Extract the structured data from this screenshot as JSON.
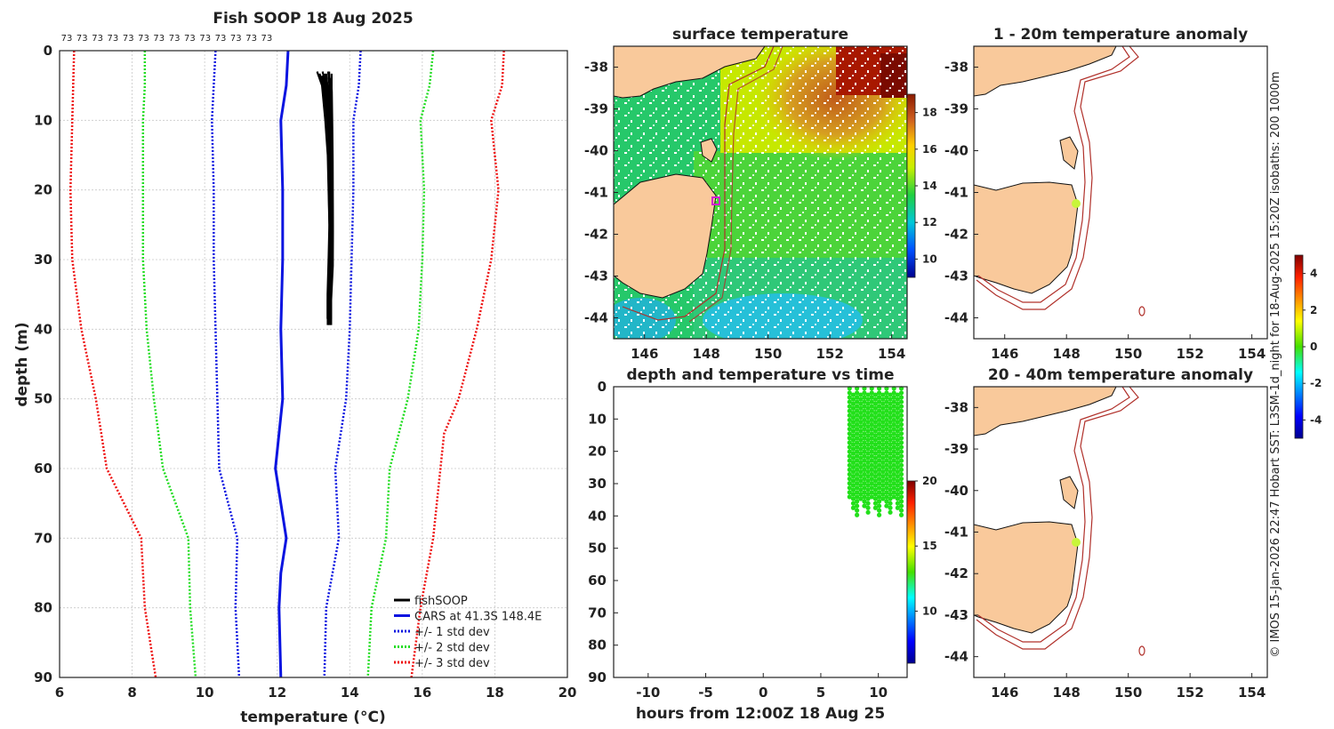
{
  "credit": "© IMOS 15-Jan-2026 22:47 Hobart SST: L3SM-1d_night for 18-Aug-2025 15:20Z isobaths: 200  1000m",
  "colors": {
    "fishsoop": "#000000",
    "cars": "#0a14e0",
    "std1": "#0a14e0",
    "std2": "#22dd22",
    "std3": "#ee1111",
    "land": "#f9c99b",
    "isobath": "#b0302a",
    "time_points": "#22e01a",
    "anomaly_marker": "#c8f53a",
    "mooring_marker": "#d020d0"
  },
  "chart_data": [
    {
      "type": "line",
      "name": "profile",
      "title": "Fish SOOP 18 Aug 2025",
      "xlabel": "temperature (°C)",
      "ylabel": "depth (m)",
      "xlim": [
        6,
        20
      ],
      "ylim": [
        90,
        0
      ],
      "xticks": [
        6,
        8,
        10,
        12,
        14,
        16,
        18,
        20
      ],
      "yticks": [
        0,
        10,
        20,
        30,
        40,
        50,
        60,
        70,
        80,
        90
      ],
      "top_annotation": [
        "73",
        "73",
        "73",
        "73",
        "73",
        "73",
        "73",
        "73",
        "73",
        "73",
        "73",
        "73",
        "73",
        "73"
      ],
      "legend": [
        "fishSOOP",
        "CARS at 41.3S 148.4E",
        "+/- 1 std dev",
        "+/- 2 std dev",
        "+/- 3 std dev"
      ],
      "series": [
        {
          "name": "CARS mean",
          "depth": [
            0,
            5,
            10,
            20,
            30,
            40,
            50,
            60,
            70,
            75,
            80,
            90
          ],
          "temp": [
            12.3,
            12.25,
            12.1,
            12.15,
            12.15,
            12.1,
            12.15,
            11.95,
            12.25,
            12.1,
            12.05,
            12.1
          ]
        },
        {
          "name": "-1 std",
          "depth": [
            0,
            10,
            20,
            30,
            40,
            50,
            60,
            70,
            80,
            90
          ],
          "temp": [
            10.3,
            10.2,
            10.25,
            10.25,
            10.3,
            10.35,
            10.4,
            10.9,
            10.85,
            10.95
          ]
        },
        {
          "name": "+1 std",
          "depth": [
            0,
            5,
            10,
            20,
            30,
            40,
            50,
            60,
            70,
            80,
            90
          ],
          "temp": [
            14.3,
            14.25,
            14.1,
            14.1,
            14.05,
            14.0,
            13.9,
            13.6,
            13.7,
            13.35,
            13.3
          ]
        },
        {
          "name": "-2 std",
          "depth": [
            0,
            5,
            10,
            20,
            30,
            40,
            50,
            60,
            70,
            80,
            90
          ],
          "temp": [
            8.35,
            8.35,
            8.3,
            8.3,
            8.3,
            8.4,
            8.6,
            8.85,
            9.55,
            9.6,
            9.75
          ]
        },
        {
          "name": "+2 std",
          "depth": [
            0,
            5,
            10,
            20,
            30,
            40,
            50,
            60,
            70,
            80,
            90
          ],
          "temp": [
            16.3,
            16.2,
            15.95,
            16.05,
            16.0,
            15.9,
            15.6,
            15.1,
            15.0,
            14.6,
            14.5
          ]
        },
        {
          "name": "-3 std",
          "depth": [
            0,
            10,
            20,
            30,
            40,
            50,
            60,
            70,
            80,
            90
          ],
          "temp": [
            6.4,
            6.35,
            6.3,
            6.35,
            6.6,
            7.0,
            7.3,
            8.25,
            8.35,
            8.65
          ]
        },
        {
          "name": "+3 std",
          "depth": [
            0,
            5,
            10,
            20,
            30,
            40,
            50,
            55,
            60,
            70,
            80,
            90
          ],
          "temp": [
            18.25,
            18.2,
            17.9,
            18.1,
            17.9,
            17.5,
            17.0,
            16.6,
            16.5,
            16.3,
            15.95,
            15.7
          ]
        },
        {
          "name": "fishSOOP",
          "depth": [
            3,
            5,
            10,
            15,
            20,
            25,
            30,
            35,
            38.5
          ],
          "temp": [
            13.5,
            13.5,
            13.5,
            13.5,
            13.5,
            13.5,
            13.5,
            13.45,
            13.45
          ],
          "upper": [
            12.7,
            13.0,
            13.2,
            13.35,
            13.4,
            13.45,
            13.4,
            13.4,
            13.4
          ]
        }
      ]
    },
    {
      "type": "heatmap",
      "name": "surface_temperature",
      "title": "surface temperature",
      "xticks": [
        146,
        148,
        150,
        152,
        154
      ],
      "yticks": [
        -38,
        -39,
        -40,
        -41,
        -42,
        -43,
        -44
      ],
      "xlim": [
        145,
        154.5
      ],
      "ylim": [
        -44.5,
        -37.5
      ],
      "colorbar_ticks": [
        10,
        12,
        14,
        16,
        18
      ],
      "colorbar_range": [
        9,
        19
      ]
    },
    {
      "type": "scatter",
      "name": "depth_temperature_vs_time",
      "title": "depth and temperature vs time",
      "xlabel": "hours from 12:00Z 18 Aug 25",
      "xlim": [
        -13,
        12.5
      ],
      "ylim": [
        90,
        0
      ],
      "xticks": [
        -10,
        -5,
        0,
        5,
        10
      ],
      "yticks": [
        0,
        10,
        20,
        30,
        40,
        50,
        60,
        70,
        80,
        90
      ],
      "time_range_hours": [
        7.5,
        12.0
      ],
      "depth_range_m": [
        0,
        40
      ],
      "colorbar_ticks": [
        10,
        15,
        20
      ],
      "colorbar_range": [
        6,
        20
      ]
    },
    {
      "type": "heatmap",
      "name": "anomaly_1_20m",
      "title": "1 - 20m temperature anomaly",
      "xticks": [
        146,
        148,
        150,
        152,
        154
      ],
      "yticks": [
        -38,
        -39,
        -40,
        -41,
        -42,
        -43,
        -44
      ],
      "xlim": [
        145,
        154.5
      ],
      "ylim": [
        -44.5,
        -37.5
      ],
      "marker": {
        "lon": 148.3,
        "lat": -41.3
      }
    },
    {
      "type": "heatmap",
      "name": "anomaly_20_40m",
      "title": "20 - 40m temperature anomaly",
      "xticks": [
        146,
        148,
        150,
        152,
        154
      ],
      "yticks": [
        -38,
        -39,
        -40,
        -41,
        -42,
        -43,
        -44
      ],
      "xlim": [
        145,
        154.5
      ],
      "ylim": [
        -44.5,
        -37.5
      ],
      "marker": {
        "lon": 148.3,
        "lat": -41.3
      },
      "colorbar_ticks": [
        -4,
        -2,
        0,
        2,
        4
      ],
      "colorbar_range": [
        -5,
        5
      ]
    }
  ]
}
